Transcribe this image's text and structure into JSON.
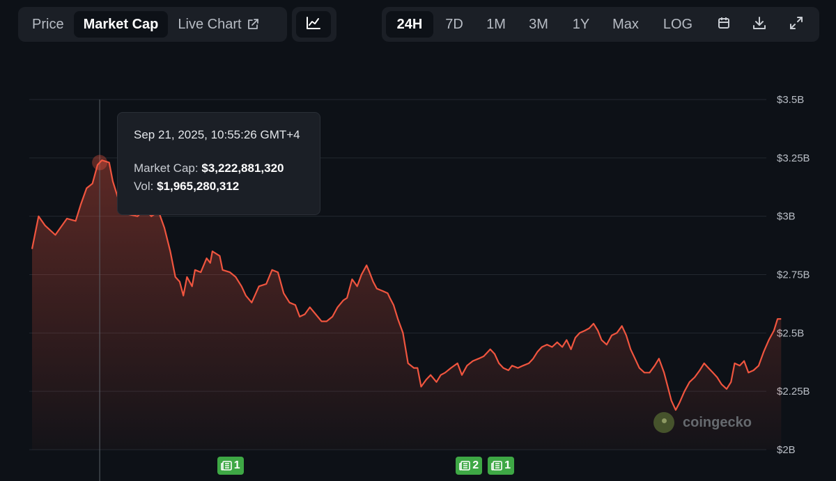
{
  "tabs": {
    "price": "Price",
    "market_cap": "Market Cap",
    "live_chart": "Live Chart"
  },
  "ranges": [
    "24H",
    "7D",
    "1M",
    "3M",
    "1Y",
    "Max",
    "LOG"
  ],
  "active_range": "24H",
  "icons": {
    "chart_type": "line-chart-icon",
    "calendar": "calendar-icon",
    "download": "download-icon",
    "fullscreen": "fullscreen-icon",
    "external": "external-link-icon",
    "news": "news-icon"
  },
  "tooltip": {
    "date": "Sep 21, 2025, 10:55:26 GMT+4",
    "market_cap_label": "Market Cap:",
    "market_cap_value": "$3,222,881,320",
    "vol_label": "Vol:",
    "vol_value": "$1,965,280,312"
  },
  "news_badges": [
    "1",
    "2",
    "1"
  ],
  "watermark": "coingecko",
  "colors": {
    "background": "#0d1117",
    "line": "#f0553f",
    "badge": "#3ea845"
  },
  "chart_data": {
    "type": "area",
    "yticks": [
      "$2B",
      "$2.25B",
      "$2.5B",
      "$2.75B",
      "$3B",
      "$3.25B",
      "$3.5B"
    ],
    "ylim": [
      2.0,
      3.5
    ],
    "xlim": [
      0,
      1
    ],
    "grid": true,
    "series": [
      {
        "unit": "USD billions",
        "points": [
          [
            0.0,
            2.86
          ],
          [
            0.009,
            3.0
          ],
          [
            0.018,
            2.96
          ],
          [
            0.032,
            2.92
          ],
          [
            0.048,
            2.99
          ],
          [
            0.06,
            2.98
          ],
          [
            0.067,
            3.05
          ],
          [
            0.075,
            3.12
          ],
          [
            0.083,
            3.14
          ],
          [
            0.09,
            3.22
          ],
          [
            0.096,
            3.24
          ],
          [
            0.106,
            3.23
          ],
          [
            0.111,
            3.15
          ],
          [
            0.118,
            3.08
          ],
          [
            0.13,
            3.01
          ],
          [
            0.145,
            3.0
          ],
          [
            0.155,
            3.03
          ],
          [
            0.164,
            3.0
          ],
          [
            0.174,
            3.02
          ],
          [
            0.182,
            2.95
          ],
          [
            0.19,
            2.85
          ],
          [
            0.197,
            2.74
          ],
          [
            0.203,
            2.72
          ],
          [
            0.208,
            2.66
          ],
          [
            0.213,
            2.74
          ],
          [
            0.22,
            2.7
          ],
          [
            0.224,
            2.77
          ],
          [
            0.232,
            2.76
          ],
          [
            0.24,
            2.82
          ],
          [
            0.245,
            2.8
          ],
          [
            0.248,
            2.85
          ],
          [
            0.258,
            2.83
          ],
          [
            0.262,
            2.77
          ],
          [
            0.272,
            2.76
          ],
          [
            0.28,
            2.74
          ],
          [
            0.288,
            2.7
          ],
          [
            0.294,
            2.66
          ],
          [
            0.302,
            2.63
          ],
          [
            0.312,
            2.7
          ],
          [
            0.322,
            2.71
          ],
          [
            0.33,
            2.77
          ],
          [
            0.338,
            2.76
          ],
          [
            0.346,
            2.67
          ],
          [
            0.354,
            2.63
          ],
          [
            0.362,
            2.62
          ],
          [
            0.368,
            2.57
          ],
          [
            0.375,
            2.58
          ],
          [
            0.382,
            2.61
          ],
          [
            0.39,
            2.58
          ],
          [
            0.398,
            2.55
          ],
          [
            0.405,
            2.55
          ],
          [
            0.413,
            2.57
          ],
          [
            0.42,
            2.61
          ],
          [
            0.428,
            2.64
          ],
          [
            0.433,
            2.65
          ],
          [
            0.44,
            2.73
          ],
          [
            0.447,
            2.7
          ],
          [
            0.453,
            2.75
          ],
          [
            0.46,
            2.79
          ],
          [
            0.464,
            2.76
          ],
          [
            0.469,
            2.72
          ],
          [
            0.474,
            2.69
          ],
          [
            0.482,
            2.68
          ],
          [
            0.489,
            2.67
          ],
          [
            0.492,
            2.65
          ],
          [
            0.497,
            2.62
          ],
          [
            0.503,
            2.56
          ],
          [
            0.51,
            2.5
          ],
          [
            0.517,
            2.37
          ],
          [
            0.525,
            2.35
          ],
          [
            0.53,
            2.35
          ],
          [
            0.535,
            2.27
          ],
          [
            0.542,
            2.3
          ],
          [
            0.548,
            2.32
          ],
          [
            0.556,
            2.29
          ],
          [
            0.562,
            2.32
          ],
          [
            0.568,
            2.33
          ],
          [
            0.576,
            2.35
          ],
          [
            0.585,
            2.37
          ],
          [
            0.591,
            2.32
          ],
          [
            0.598,
            2.36
          ],
          [
            0.606,
            2.38
          ],
          [
            0.614,
            2.39
          ],
          [
            0.621,
            2.4
          ],
          [
            0.63,
            2.43
          ],
          [
            0.636,
            2.41
          ],
          [
            0.642,
            2.37
          ],
          [
            0.648,
            2.35
          ],
          [
            0.655,
            2.34
          ],
          [
            0.66,
            2.36
          ],
          [
            0.668,
            2.35
          ],
          [
            0.675,
            2.36
          ],
          [
            0.683,
            2.37
          ],
          [
            0.689,
            2.39
          ],
          [
            0.695,
            2.42
          ],
          [
            0.701,
            2.44
          ],
          [
            0.708,
            2.45
          ],
          [
            0.715,
            2.44
          ],
          [
            0.722,
            2.46
          ],
          [
            0.729,
            2.44
          ],
          [
            0.735,
            2.47
          ],
          [
            0.741,
            2.43
          ],
          [
            0.747,
            2.48
          ],
          [
            0.753,
            2.5
          ],
          [
            0.76,
            2.51
          ],
          [
            0.766,
            2.52
          ],
          [
            0.772,
            2.54
          ],
          [
            0.778,
            2.51
          ],
          [
            0.783,
            2.47
          ],
          [
            0.79,
            2.45
          ],
          [
            0.797,
            2.49
          ],
          [
            0.804,
            2.5
          ],
          [
            0.811,
            2.53
          ],
          [
            0.817,
            2.49
          ],
          [
            0.823,
            2.43
          ],
          [
            0.829,
            2.39
          ],
          [
            0.835,
            2.35
          ],
          [
            0.842,
            2.33
          ],
          [
            0.849,
            2.33
          ],
          [
            0.856,
            2.36
          ],
          [
            0.862,
            2.39
          ],
          [
            0.869,
            2.33
          ],
          [
            0.874,
            2.27
          ],
          [
            0.879,
            2.21
          ],
          [
            0.885,
            2.17
          ],
          [
            0.89,
            2.2
          ],
          [
            0.897,
            2.25
          ],
          [
            0.904,
            2.29
          ],
          [
            0.911,
            2.31
          ],
          [
            0.918,
            2.34
          ],
          [
            0.924,
            2.37
          ],
          [
            0.93,
            2.35
          ],
          [
            0.936,
            2.33
          ],
          [
            0.942,
            2.31
          ],
          [
            0.948,
            2.28
          ],
          [
            0.955,
            2.26
          ],
          [
            0.961,
            2.29
          ],
          [
            0.966,
            2.37
          ],
          [
            0.973,
            2.36
          ],
          [
            0.979,
            2.38
          ],
          [
            0.985,
            2.33
          ],
          [
            0.992,
            2.34
          ],
          [
            0.999,
            2.36
          ],
          [
            1.006,
            2.42
          ],
          [
            1.013,
            2.47
          ],
          [
            1.02,
            2.51
          ],
          [
            1.025,
            2.56
          ],
          [
            1.03,
            2.56
          ]
        ]
      }
    ],
    "hover_x": 0.093,
    "markers": [
      0.268,
      0.596,
      0.64
    ]
  }
}
